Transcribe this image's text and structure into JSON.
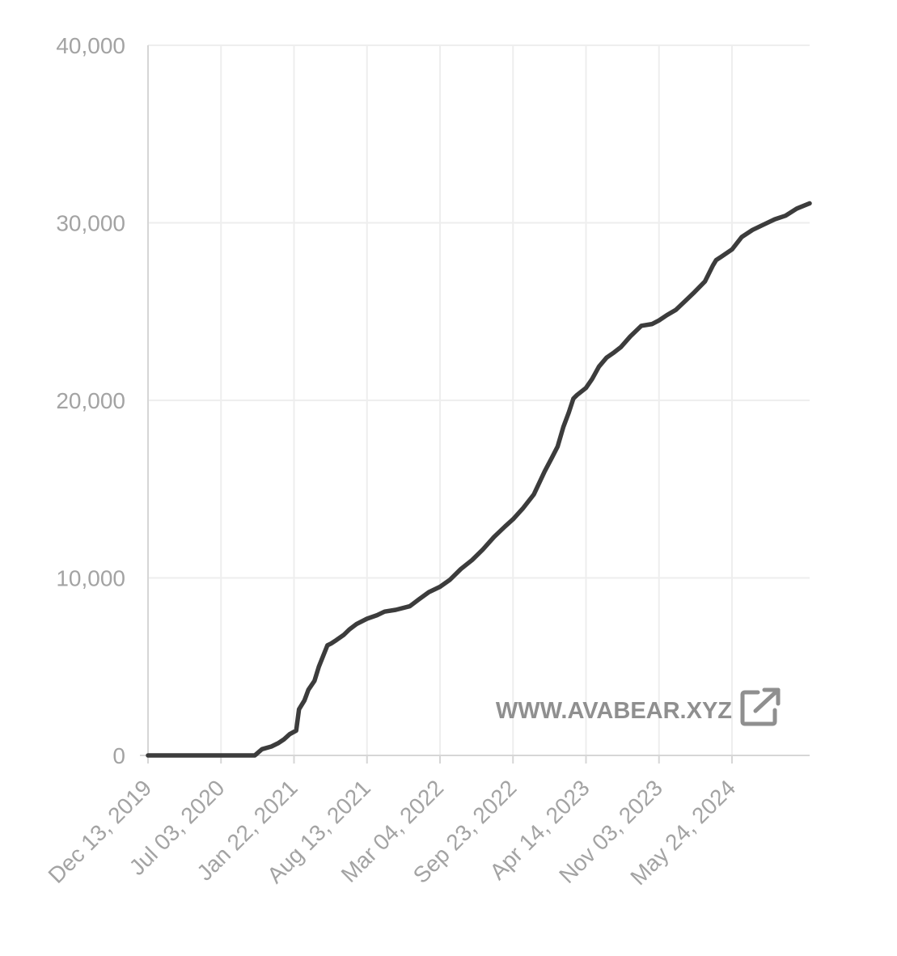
{
  "colors": {
    "line": "#3c3c3c",
    "grid": "#eeeeee",
    "axis": "#d6d6d6",
    "tick_text": "#a3a3a3",
    "watermark": "#8f8f8f"
  },
  "watermark": {
    "text": "WWW.AVABEAR.XYZ",
    "icon": "external-link-icon"
  },
  "chart_data": {
    "type": "line",
    "title": "",
    "xlabel": "",
    "ylabel": "",
    "grid": true,
    "legend": "none",
    "x_ticks": [
      "Dec 13, 2019",
      "Jul 03, 2020",
      "Jan 22, 2021",
      "Aug 13, 2021",
      "Mar 04, 2022",
      "Sep 23, 2022",
      "Apr 14, 2023",
      "Nov 03, 2023",
      "May 24, 2024"
    ],
    "y_ticks": [
      "0",
      "10,000",
      "20,000",
      "30,000",
      "40,000"
    ],
    "xlim": [
      "2019-12-13",
      "2024-12-26"
    ],
    "ylim": [
      0,
      40000
    ],
    "series": [
      {
        "x": [
          "2019-12-13",
          "2020-03-01",
          "2020-06-01",
          "2020-09-01",
          "2020-10-05",
          "2020-10-25",
          "2020-11-20",
          "2020-12-10",
          "2020-12-25",
          "2021-01-10",
          "2021-01-28",
          "2021-02-05",
          "2021-02-20",
          "2021-03-03",
          "2021-03-20",
          "2021-04-01",
          "2021-04-25",
          "2021-05-05",
          "2021-05-20",
          "2021-06-10",
          "2021-06-25",
          "2021-07-15",
          "2021-08-13",
          "2021-09-10",
          "2021-10-01",
          "2021-11-01",
          "2021-12-10",
          "2022-01-05",
          "2022-02-01",
          "2022-03-04",
          "2022-04-01",
          "2022-05-01",
          "2022-06-01",
          "2022-07-01",
          "2022-08-01",
          "2022-09-01",
          "2022-09-23",
          "2022-10-20",
          "2022-11-20",
          "2022-12-20",
          "2023-01-10",
          "2023-01-25",
          "2023-02-10",
          "2023-02-25",
          "2023-03-10",
          "2023-03-20",
          "2023-04-14",
          "2023-05-01",
          "2023-05-20",
          "2023-06-10",
          "2023-07-01",
          "2023-07-20",
          "2023-08-15",
          "2023-09-15",
          "2023-10-15",
          "2023-11-03",
          "2023-11-25",
          "2023-12-20",
          "2024-01-15",
          "2024-02-10",
          "2024-03-10",
          "2024-04-01",
          "2024-04-10",
          "2024-04-25",
          "2024-05-24",
          "2024-06-20",
          "2024-07-20",
          "2024-08-20",
          "2024-09-20",
          "2024-10-20",
          "2024-11-20",
          "2024-12-26"
        ],
        "values": [
          0,
          0,
          0,
          0,
          0,
          350,
          500,
          700,
          900,
          1200,
          1400,
          2600,
          3100,
          3700,
          4200,
          5000,
          6200,
          6300,
          6500,
          6800,
          7100,
          7400,
          7700,
          7900,
          8100,
          8200,
          8400,
          8800,
          9200,
          9500,
          9900,
          10500,
          11000,
          11600,
          12300,
          12900,
          13300,
          13900,
          14700,
          16000,
          16800,
          17400,
          18500,
          19300,
          20100,
          20300,
          20700,
          21200,
          21900,
          22400,
          22700,
          23000,
          23600,
          24200,
          24300,
          24500,
          24800,
          25100,
          25600,
          26100,
          26700,
          27600,
          27900,
          28100,
          28500,
          29200,
          29600,
          29900,
          30200,
          30400,
          30800,
          31100
        ]
      }
    ]
  }
}
